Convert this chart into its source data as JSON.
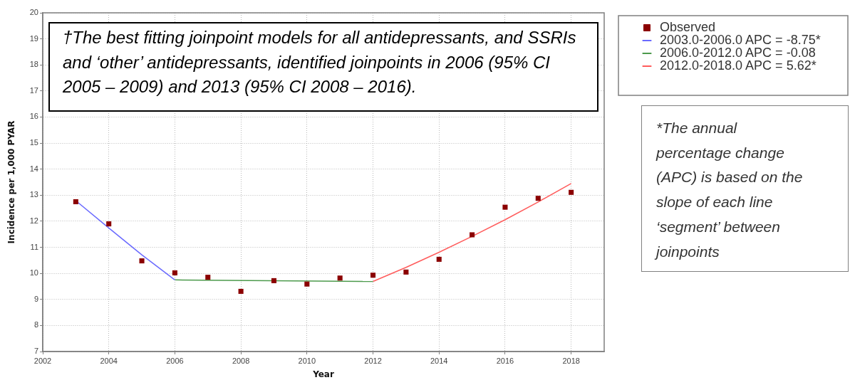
{
  "chart_data": {
    "type": "scatter",
    "xlabel": "Year",
    "ylabel": "Incidence per 1,000 PYAR",
    "xlim": [
      2002,
      2019
    ],
    "xticks": [
      2002,
      2004,
      2006,
      2008,
      2010,
      2012,
      2014,
      2016,
      2018
    ],
    "ylim": [
      7,
      20
    ],
    "yticks": [
      7,
      8,
      9,
      10,
      11,
      12,
      13,
      14,
      15,
      16,
      17,
      18,
      19,
      20
    ],
    "grid": true,
    "legend": "top right",
    "annotations": [
      "†The best fitting joinpoint models for all antidepressants, and SSRIs and ‘other’ antidepressants, identified joinpoints in 2006 (95% CI 2005 – 2009) and 2013 (95% CI 2008 – 2016).",
      "*The annual percentage change (APC) is based on the slope of each line ‘segment’ between joinpoints"
    ],
    "series": [
      {
        "name": "Observed",
        "marker": "square",
        "color": "#8b0000",
        "x": [
          2003,
          2004,
          2005,
          2006,
          2007,
          2008,
          2009,
          2010,
          2011,
          2012,
          2013,
          2014,
          2015,
          2016,
          2017,
          2018
        ],
        "values": [
          12.75,
          11.9,
          10.48,
          10.02,
          9.85,
          9.31,
          9.72,
          9.59,
          9.82,
          9.93,
          10.05,
          10.54,
          11.48,
          12.54,
          12.88,
          13.11
        ]
      },
      {
        "name": "2003.0-2006.0 APC = -8.75*",
        "type": "line",
        "color": "#6a6aff",
        "x": [
          2003,
          2004,
          2005,
          2006
        ],
        "values": [
          12.79,
          11.74,
          10.71,
          9.75
        ]
      },
      {
        "name": "2006.0-2012.0 APC = -0.08",
        "type": "line",
        "color": "#4c9a4c",
        "x": [
          2006,
          2012
        ],
        "values": [
          9.75,
          9.69
        ]
      },
      {
        "name": "2012.0-2018.0 APC = 5.62*",
        "type": "line",
        "color": "#ff5c5c",
        "x": [
          2012,
          2013,
          2014,
          2015,
          2016,
          2017,
          2018
        ],
        "values": [
          9.69,
          10.23,
          10.81,
          11.42,
          12.06,
          12.74,
          13.45
        ]
      }
    ]
  }
}
